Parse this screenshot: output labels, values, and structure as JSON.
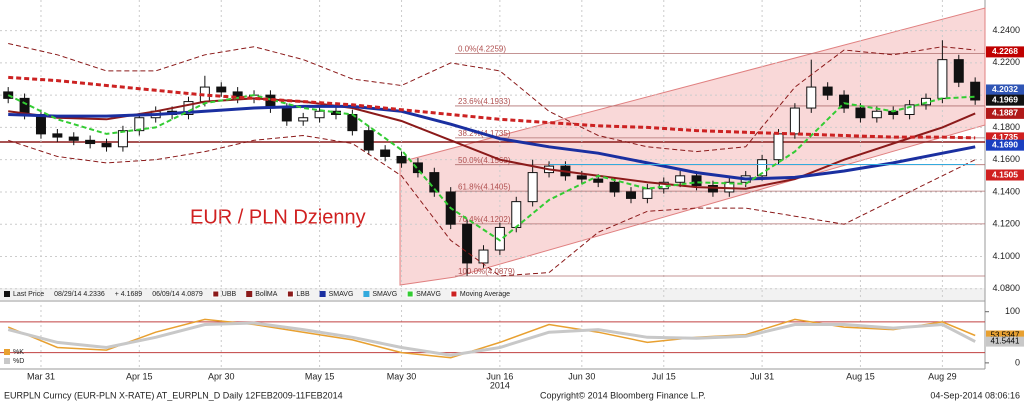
{
  "chart_data": [
    {
      "type": "candlestick",
      "title": "EUR / PLN Dzienny",
      "legend_info": [
        "Last Price",
        "08/29/14 4.2336",
        "+ 4.1689",
        "06/09/14 4.0879"
      ],
      "open": [
        4.202,
        4.198,
        4.188,
        4.176,
        4.174,
        4.172,
        4.17,
        4.168,
        4.178,
        4.186,
        4.19,
        4.188,
        4.196,
        4.205,
        4.202,
        4.198,
        4.2,
        4.192,
        4.184,
        4.186,
        4.19,
        4.188,
        4.178,
        4.166,
        4.162,
        4.158,
        4.152,
        4.14,
        4.12,
        4.096,
        4.104,
        4.118,
        4.134,
        4.152,
        4.156,
        4.15,
        4.148,
        4.146,
        4.14,
        4.136,
        4.142,
        4.146,
        4.15,
        4.144,
        4.14,
        4.146,
        4.15,
        4.16,
        4.176,
        4.192,
        4.205,
        4.2,
        4.192,
        4.186,
        4.19,
        4.188,
        4.194,
        4.198,
        4.222,
        4.208
      ],
      "high": [
        4.205,
        4.201,
        4.191,
        4.179,
        4.177,
        4.175,
        4.173,
        4.181,
        4.189,
        4.193,
        4.193,
        4.199,
        4.212,
        4.208,
        4.205,
        4.203,
        4.203,
        4.195,
        4.189,
        4.193,
        4.193,
        4.191,
        4.181,
        4.169,
        4.165,
        4.161,
        4.155,
        4.143,
        4.123,
        4.107,
        4.121,
        4.137,
        4.16,
        4.159,
        4.159,
        4.153,
        4.151,
        4.149,
        4.143,
        4.145,
        4.149,
        4.153,
        4.153,
        4.147,
        4.149,
        4.153,
        4.163,
        4.179,
        4.195,
        4.222,
        4.208,
        4.203,
        4.195,
        4.193,
        4.193,
        4.197,
        4.201,
        4.234,
        4.225,
        4.211
      ],
      "low": [
        4.195,
        4.185,
        4.173,
        4.171,
        4.169,
        4.167,
        4.165,
        4.165,
        4.175,
        4.183,
        4.185,
        4.185,
        4.193,
        4.199,
        4.195,
        4.195,
        4.189,
        4.181,
        4.181,
        4.183,
        4.185,
        4.175,
        4.163,
        4.159,
        4.155,
        4.149,
        4.137,
        4.117,
        4.088,
        4.093,
        4.101,
        4.115,
        4.131,
        4.149,
        4.147,
        4.145,
        4.143,
        4.137,
        4.133,
        4.133,
        4.139,
        4.143,
        4.141,
        4.137,
        4.137,
        4.143,
        4.147,
        4.157,
        4.173,
        4.189,
        4.197,
        4.189,
        4.183,
        4.183,
        4.185,
        4.185,
        4.191,
        4.195,
        4.205,
        4.194
      ],
      "close": [
        4.198,
        4.188,
        4.176,
        4.174,
        4.172,
        4.17,
        4.168,
        4.178,
        4.186,
        4.19,
        4.188,
        4.196,
        4.205,
        4.202,
        4.198,
        4.2,
        4.192,
        4.184,
        4.186,
        4.19,
        4.188,
        4.178,
        4.166,
        4.162,
        4.158,
        4.152,
        4.14,
        4.12,
        4.096,
        4.104,
        4.118,
        4.134,
        4.152,
        4.156,
        4.15,
        4.148,
        4.146,
        4.14,
        4.136,
        4.142,
        4.146,
        4.15,
        4.144,
        4.14,
        4.146,
        4.15,
        4.16,
        4.176,
        4.192,
        4.205,
        4.2,
        4.192,
        4.186,
        4.19,
        4.188,
        4.194,
        4.198,
        4.222,
        4.208,
        4.197
      ],
      "line_x": [
        0,
        3,
        6,
        9,
        12,
        15,
        18,
        21,
        24,
        27,
        30,
        33,
        36,
        39,
        42,
        45,
        48,
        51,
        54,
        57,
        59
      ],
      "series": [
        {
          "name": "UBB",
          "color": "#8b1a1a",
          "dash": true,
          "width": 1,
          "values": [
            4.232,
            4.225,
            4.215,
            4.215,
            4.225,
            4.23,
            4.222,
            4.21,
            4.206,
            4.22,
            4.215,
            4.19,
            4.175,
            4.168,
            4.165,
            4.168,
            4.205,
            4.228,
            4.225,
            4.23,
            4.228
          ]
        },
        {
          "name": "BollMA",
          "color": "#8b1a1a",
          "dash": false,
          "width": 2,
          "values": [
            4.19,
            4.186,
            4.185,
            4.19,
            4.196,
            4.198,
            4.196,
            4.192,
            4.184,
            4.172,
            4.16,
            4.154,
            4.15,
            4.146,
            4.143,
            4.142,
            4.148,
            4.16,
            4.17,
            4.18,
            4.1887
          ]
        },
        {
          "name": "LBB",
          "color": "#8b1a1a",
          "dash": true,
          "width": 1,
          "values": [
            4.172,
            4.162,
            4.158,
            4.16,
            4.165,
            4.172,
            4.175,
            4.17,
            4.15,
            4.11,
            4.088,
            4.09,
            4.115,
            4.128,
            4.13,
            4.13,
            4.125,
            4.12,
            4.135,
            4.15,
            4.16
          ]
        },
        {
          "name": "SMAVG",
          "color": "#1a2fa0",
          "dash": false,
          "width": 3,
          "values": [
            4.188,
            4.187,
            4.187,
            4.188,
            4.19,
            4.192,
            4.193,
            4.193,
            4.19,
            4.182,
            4.173,
            4.168,
            4.164,
            4.158,
            4.152,
            4.148,
            4.149,
            4.153,
            4.158,
            4.164,
            4.168
          ]
        },
        {
          "name": "SMAVG",
          "color": "#33aadd",
          "dash": false,
          "width": 1,
          "values": [
            null,
            null,
            null,
            null,
            null,
            null,
            null,
            null,
            null,
            null,
            null,
            4.157,
            4.157,
            4.157,
            4.157,
            4.157,
            4.157,
            4.157,
            4.157,
            4.157,
            4.157
          ]
        },
        {
          "name": "SMAVG",
          "color": "#33cc33",
          "dash": true,
          "width": 2,
          "values": [
            4.2,
            4.185,
            4.176,
            4.18,
            4.195,
            4.2,
            4.192,
            4.188,
            4.166,
            4.13,
            4.11,
            4.135,
            4.15,
            4.142,
            4.146,
            4.145,
            4.165,
            4.195,
            4.19,
            4.198,
            4.199
          ]
        },
        {
          "name": "Moving Average",
          "color": "#cc2222",
          "dash": true,
          "width": 3,
          "values": [
            4.211,
            4.209,
            4.206,
            4.203,
            4.2,
            4.198,
            4.196,
            4.194,
            4.191,
            4.188,
            4.185,
            4.183,
            4.181,
            4.18,
            4.178,
            4.177,
            4.176,
            4.175,
            4.174,
            4.174,
            4.1735
          ]
        }
      ],
      "levels": [
        {
          "label": "0.0%(4.2259)",
          "value": 4.2259
        },
        {
          "label": "23.6%(4.1933)",
          "value": 4.1933
        },
        {
          "label": "38.2%(4.1735)",
          "value": 4.1735
        },
        {
          "label": "50.0%(4.1569)",
          "value": 4.1569
        },
        {
          "label": "61.8%(4.1405)",
          "value": 4.1405
        },
        {
          "label": "76.4%(4.1202)",
          "value": 4.1202
        },
        {
          "label": "100.0%(4.0879)",
          "value": 4.0879
        }
      ],
      "price_tags": [
        {
          "value": 4.2268,
          "color": "#c00000"
        },
        {
          "value": 4.2032,
          "color": "#2f55b5"
        },
        {
          "value": 4.1969,
          "color": "#111111"
        },
        {
          "value": 4.1887,
          "color": "#b01818"
        },
        {
          "value": 4.1735,
          "color": "#d02020"
        },
        {
          "value": 4.169,
          "label": "4.1690",
          "color": "#1a3fc0"
        },
        {
          "value": 4.1505,
          "color": "#d02020"
        }
      ],
      "ylim": [
        4.078,
        4.254
      ],
      "yticks": [
        {
          "value": 4.08,
          "label": "4.0800"
        },
        {
          "value": 4.1,
          "label": "4.1000"
        },
        {
          "value": 4.12,
          "label": "4.1200"
        },
        {
          "value": 4.14,
          "label": "4.1400"
        },
        {
          "value": 4.16,
          "label": "4.1600"
        },
        {
          "value": 4.18,
          "label": "4.1800"
        },
        {
          "value": 4.2,
          "label": "4.2000"
        },
        {
          "value": 4.22,
          "label": "4.2200"
        },
        {
          "value": 4.24,
          "label": "4.2400"
        }
      ],
      "xlim": [
        -0.5,
        59.6
      ],
      "xticks": [
        {
          "value": 2,
          "label": "Mar 31"
        },
        {
          "value": 8,
          "label": "Apr 15"
        },
        {
          "value": 13,
          "label": "Apr 30"
        },
        {
          "value": 19,
          "label": "May 15"
        },
        {
          "value": 24,
          "label": "May 30"
        },
        {
          "value": 30,
          "label": "Jun 16"
        },
        {
          "value": 35,
          "label": "Jun 30"
        },
        {
          "value": 40,
          "label": "Jul 15"
        },
        {
          "value": 46,
          "label": "Jul 31"
        },
        {
          "value": 52,
          "label": "Aug 15"
        },
        {
          "value": 57,
          "label": "Aug 29"
        }
      ],
      "year_label": "2014",
      "grid": true
    },
    {
      "type": "line",
      "x": [
        0,
        3,
        6,
        9,
        12,
        15,
        18,
        21,
        24,
        27,
        30,
        33,
        36,
        39,
        42,
        45,
        48,
        51,
        54,
        57,
        59
      ],
      "series": [
        {
          "name": "%K",
          "color": "#e8a030",
          "values": [
            70,
            30,
            25,
            60,
            85,
            75,
            60,
            45,
            20,
            10,
            40,
            75,
            60,
            40,
            50,
            55,
            85,
            70,
            65,
            80,
            53.5347
          ]
        },
        {
          "name": "%D",
          "color": "#c8c8c8",
          "values": [
            65,
            40,
            30,
            50,
            75,
            78,
            65,
            50,
            30,
            15,
            30,
            60,
            65,
            50,
            48,
            52,
            75,
            75,
            68,
            75,
            41.5441
          ]
        }
      ],
      "levels": [
        20,
        80
      ],
      "ylim": [
        -10,
        117
      ],
      "yticks": [
        0,
        100
      ]
    }
  ],
  "footer": {
    "left": "EURPLN Curncy (EUR-PLN X-RATE) AT_EURPLN_D  Daily 12FEB2009-11FEB2014",
    "center": "Copyright© 2014 Bloomberg Finance L.P.",
    "right": "04-Sep-2014 08:06:16"
  }
}
